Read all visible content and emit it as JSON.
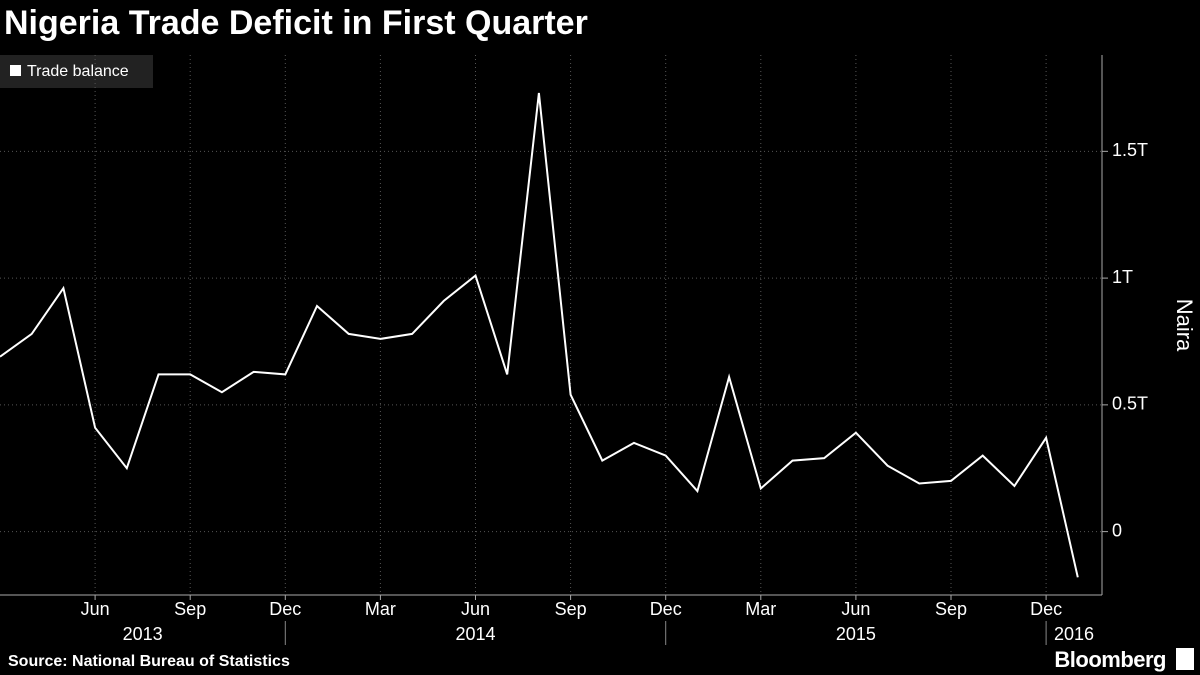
{
  "chart_data": {
    "type": "line",
    "title": "Nigeria Trade Deficit in First Quarter",
    "y_label": "Naira",
    "source": "Source: National Bureau of Statistics",
    "logo": "Bloomberg",
    "x": [
      "2013-03",
      "2013-04",
      "2013-05",
      "2013-06",
      "2013-07",
      "2013-08",
      "2013-09",
      "2013-10",
      "2013-11",
      "2013-12",
      "2014-01",
      "2014-02",
      "2014-03",
      "2014-04",
      "2014-05",
      "2014-06",
      "2014-07",
      "2014-08",
      "2014-09",
      "2014-10",
      "2014-11",
      "2014-12",
      "2015-01",
      "2015-02",
      "2015-03",
      "2015-04",
      "2015-05",
      "2015-06",
      "2015-07",
      "2015-08",
      "2015-09",
      "2015-10",
      "2015-11",
      "2015-12",
      "2016-01"
    ],
    "series": [
      {
        "name": "Trade balance",
        "color": "#ffffff",
        "values": [
          0.69,
          0.78,
          0.96,
          0.41,
          0.25,
          0.62,
          0.62,
          0.55,
          0.63,
          0.62,
          0.89,
          0.78,
          0.76,
          0.78,
          0.91,
          1.01,
          0.62,
          1.73,
          0.54,
          0.28,
          0.35,
          0.3,
          0.16,
          0.61,
          0.17,
          0.28,
          0.29,
          0.39,
          0.26,
          0.19,
          0.2,
          0.3,
          0.18,
          0.37,
          -0.18
        ]
      }
    ],
    "xticks": [
      {
        "value": "2013-06",
        "label": "Jun"
      },
      {
        "value": "2013-09",
        "label": "Sep"
      },
      {
        "value": "2013-12",
        "label": "Dec"
      },
      {
        "value": "2014-03",
        "label": "Mar"
      },
      {
        "value": "2014-06",
        "label": "Jun"
      },
      {
        "value": "2014-09",
        "label": "Sep"
      },
      {
        "value": "2014-12",
        "label": "Dec"
      },
      {
        "value": "2015-03",
        "label": "Mar"
      },
      {
        "value": "2015-06",
        "label": "Jun"
      },
      {
        "value": "2015-09",
        "label": "Sep"
      },
      {
        "value": "2015-12",
        "label": "Dec"
      }
    ],
    "year_labels": [
      "2013",
      "2014",
      "2015",
      "2016"
    ],
    "ylim": [
      -0.25,
      1.88
    ],
    "yticks": [
      0,
      {
        "value": 0.5,
        "label": "0.5T"
      },
      {
        "value": 1,
        "label": "1T"
      },
      {
        "value": 1.5,
        "label": "1.5T"
      }
    ],
    "grid": true
  }
}
